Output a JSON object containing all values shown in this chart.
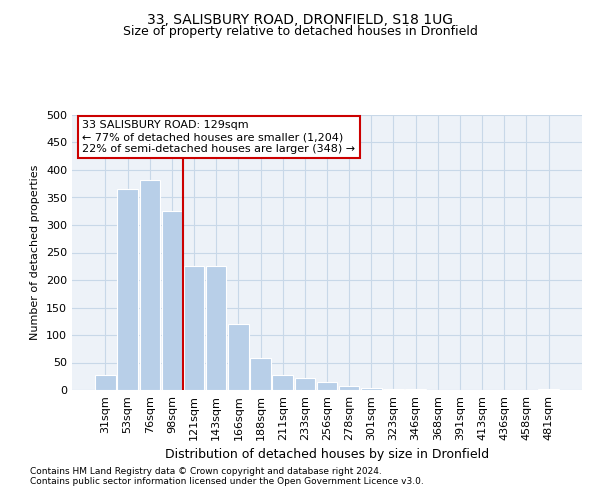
{
  "title": "33, SALISBURY ROAD, DRONFIELD, S18 1UG",
  "subtitle": "Size of property relative to detached houses in Dronfield",
  "xlabel": "Distribution of detached houses by size in Dronfield",
  "ylabel": "Number of detached properties",
  "categories": [
    "31sqm",
    "53sqm",
    "76sqm",
    "98sqm",
    "121sqm",
    "143sqm",
    "166sqm",
    "188sqm",
    "211sqm",
    "233sqm",
    "256sqm",
    "278sqm",
    "301sqm",
    "323sqm",
    "346sqm",
    "368sqm",
    "391sqm",
    "413sqm",
    "436sqm",
    "458sqm",
    "481sqm"
  ],
  "values": [
    28,
    365,
    382,
    325,
    225,
    225,
    120,
    58,
    28,
    22,
    15,
    8,
    3,
    1,
    1,
    0,
    0,
    0,
    0,
    0,
    2
  ],
  "bar_color": "#b8cfe8",
  "bar_edgecolor": "#ffffff",
  "vline_color": "#cc0000",
  "vline_x": 3.5,
  "annotation_text": "33 SALISBURY ROAD: 129sqm\n← 77% of detached houses are smaller (1,204)\n22% of semi-detached houses are larger (348) →",
  "annotation_box_facecolor": "#ffffff",
  "annotation_box_edgecolor": "#cc0000",
  "grid_color": "#c8d8e8",
  "background_color": "#edf2f8",
  "ylim": [
    0,
    500
  ],
  "yticks": [
    0,
    50,
    100,
    150,
    200,
    250,
    300,
    350,
    400,
    450,
    500
  ],
  "title_fontsize": 10,
  "subtitle_fontsize": 9,
  "ylabel_fontsize": 8,
  "xlabel_fontsize": 9,
  "tick_fontsize": 8,
  "footnote1": "Contains HM Land Registry data © Crown copyright and database right 2024.",
  "footnote2": "Contains public sector information licensed under the Open Government Licence v3.0."
}
